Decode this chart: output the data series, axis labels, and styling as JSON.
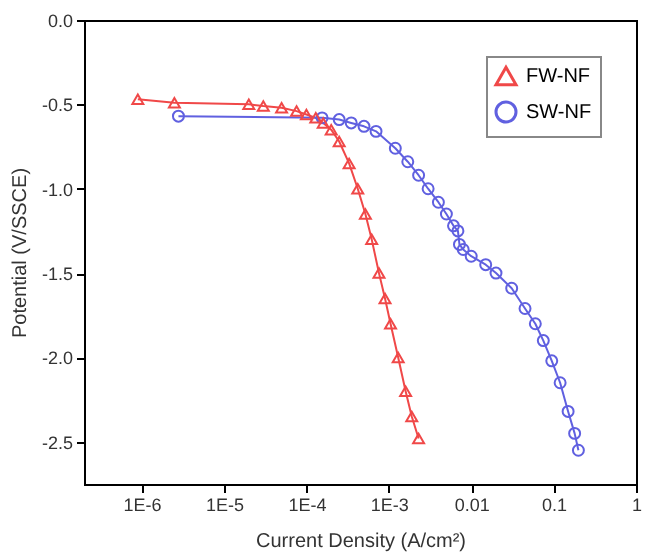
{
  "chart_data": {
    "type": "line",
    "xlabel": "Current Density (A/cm²)",
    "ylabel": "Potential (V/SSCE)",
    "log": "x",
    "xlim": [
      2e-07,
      1
    ],
    "xticks": [
      {
        "value": 1e-06,
        "label": "1E-6"
      },
      {
        "value": 1e-05,
        "label": "1E-5"
      },
      {
        "value": 0.0001,
        "label": "1E-4"
      },
      {
        "value": 0.001,
        "label": "1E-3"
      },
      0.01,
      0.1,
      1
    ],
    "ylim": [
      -2.75,
      0
    ],
    "yticks": [
      {
        "value": 0,
        "label": "0.0"
      },
      -0.5,
      {
        "value": -1,
        "label": "-1.0"
      },
      -1.5,
      {
        "value": -2,
        "label": "-2.0"
      },
      -2.5
    ],
    "legend": "top right",
    "grid": false,
    "series": [
      {
        "name": "FW-NF",
        "color": "#f04848",
        "marker": "triangle",
        "x": [
          9e-07,
          2.5e-06,
          2e-05,
          3e-05,
          5e-05,
          7.6e-05,
          0.0001,
          0.00013,
          0.00016,
          0.0002,
          0.00025,
          0.00033,
          0.00042,
          0.00052,
          0.00062,
          0.00076,
          0.0009,
          0.00105,
          0.0013,
          0.0016,
          0.0019,
          0.0023
        ],
        "values": [
          -0.47,
          -0.49,
          -0.5,
          -0.51,
          -0.52,
          -0.54,
          -0.56,
          -0.58,
          -0.61,
          -0.65,
          -0.72,
          -0.85,
          -1.0,
          -1.15,
          -1.3,
          -1.5,
          -1.65,
          -1.8,
          -2.0,
          -2.2,
          -2.35,
          -2.48
        ]
      },
      {
        "name": "SW-NF",
        "color": "#6060e0",
        "marker": "circle",
        "x": [
          2.8e-06,
          0.000155,
          0.00025,
          0.00035,
          0.0005,
          0.0007,
          0.0012,
          0.0017,
          0.0023,
          0.003,
          0.004,
          0.005,
          0.0061,
          0.0069,
          0.0072,
          0.008,
          0.01,
          0.015,
          0.02,
          0.031,
          0.045,
          0.06,
          0.075,
          0.095,
          0.12,
          0.15,
          0.18,
          0.2
        ],
        "values": [
          -0.57,
          -0.58,
          -0.59,
          -0.61,
          -0.63,
          -0.66,
          -0.76,
          -0.84,
          -0.92,
          -1.0,
          -1.08,
          -1.15,
          -1.22,
          -1.25,
          -1.33,
          -1.36,
          -1.4,
          -1.45,
          -1.5,
          -1.59,
          -1.71,
          -1.8,
          -1.9,
          -2.02,
          -2.15,
          -2.32,
          -2.45,
          -2.55
        ]
      }
    ]
  }
}
